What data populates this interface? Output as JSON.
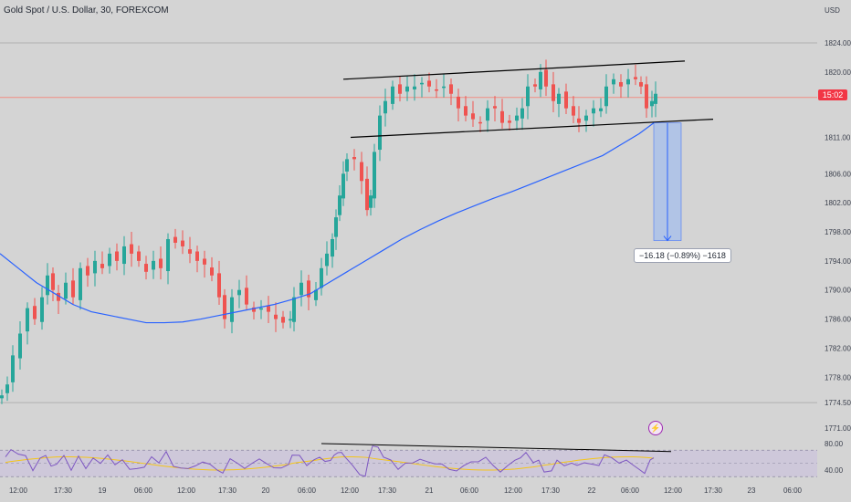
{
  "title": "Gold Spot / U.S. Dollar, 30, FOREXCOM",
  "currency": "USD",
  "last_price_label": "15:02",
  "measure_label": "−16.18 (−0.89%) −1618",
  "colors": {
    "background": "#d4d4d4",
    "up": "#26a69a",
    "down": "#ef5350",
    "moving_average": "#2962ff",
    "rsi": "#7e57c2",
    "rsi_signal": "#f5c518",
    "measure_fill": "#a9c1eb",
    "trendline": "#000000"
  },
  "chart_data": [
    {
      "type": "candlestick",
      "series_name": "Gold Spot / U.S. Dollar",
      "y_ticks": [
        1824.0,
        1820.0,
        1811.0,
        1806.0,
        1802.0,
        1798.0,
        1794.0,
        1790.0,
        1786.0,
        1782.0,
        1778.0,
        1774.5,
        1771.0
      ],
      "x_ticks": [
        "12:00",
        "17:30",
        "19",
        "06:00",
        "12:00",
        "17:30",
        "20",
        "06:00",
        "12:00",
        "17:30",
        "21",
        "06:00",
        "12:00",
        "17:30",
        "22",
        "06:00",
        "12:00",
        "17:30",
        "23",
        "06:00"
      ],
      "close_path": [
        [
          0,
          1775.5
        ],
        [
          6,
          1777
        ],
        [
          12,
          1781
        ],
        [
          20,
          1784
        ],
        [
          28,
          1787.5
        ],
        [
          36,
          1786
        ],
        [
          44,
          1789
        ],
        [
          50,
          1792
        ],
        [
          56,
          1790
        ],
        [
          62,
          1788.5
        ],
        [
          70,
          1791
        ],
        [
          78,
          1789
        ],
        [
          86,
          1793
        ],
        [
          94,
          1792
        ],
        [
          102,
          1794
        ],
        [
          110,
          1793
        ],
        [
          118,
          1795
        ],
        [
          126,
          1794
        ],
        [
          134,
          1796
        ],
        [
          142,
          1795
        ],
        [
          150,
          1794
        ],
        [
          158,
          1792.5
        ],
        [
          166,
          1794
        ],
        [
          174,
          1793
        ],
        [
          182,
          1797
        ],
        [
          190,
          1796.5
        ],
        [
          198,
          1796
        ],
        [
          206,
          1795
        ],
        [
          214,
          1794
        ],
        [
          222,
          1793.5
        ],
        [
          230,
          1792
        ],
        [
          238,
          1789
        ],
        [
          244,
          1786
        ],
        [
          252,
          1789
        ],
        [
          260,
          1790
        ],
        [
          268,
          1788
        ],
        [
          276,
          1787
        ],
        [
          284,
          1787.5
        ],
        [
          292,
          1787
        ],
        [
          300,
          1786
        ],
        [
          308,
          1785.5
        ],
        [
          316,
          1786
        ],
        [
          320,
          1789
        ],
        [
          328,
          1791
        ],
        [
          336,
          1789
        ],
        [
          344,
          1790
        ],
        [
          350,
          1793
        ],
        [
          356,
          1795
        ],
        [
          362,
          1797
        ],
        [
          366,
          1800
        ],
        [
          370,
          1803
        ],
        [
          374,
          1806
        ],
        [
          378,
          1808
        ],
        [
          386,
          1808
        ],
        [
          394,
          1805
        ],
        [
          400,
          1801
        ],
        [
          404,
          1803
        ],
        [
          408,
          1809
        ],
        [
          414,
          1814
        ],
        [
          420,
          1816
        ],
        [
          428,
          1818
        ],
        [
          436,
          1817
        ],
        [
          444,
          1818
        ],
        [
          452,
          1818
        ],
        [
          460,
          1818.5
        ],
        [
          468,
          1818
        ],
        [
          476,
          1817.5
        ],
        [
          484,
          1818
        ],
        [
          492,
          1817
        ],
        [
          500,
          1815
        ],
        [
          508,
          1814
        ],
        [
          516,
          1813.5
        ],
        [
          524,
          1813
        ],
        [
          532,
          1815
        ],
        [
          540,
          1815
        ],
        [
          548,
          1813
        ],
        [
          556,
          1813
        ],
        [
          564,
          1814
        ],
        [
          570,
          1815
        ],
        [
          576,
          1818
        ],
        [
          584,
          1818
        ],
        [
          590,
          1820
        ],
        [
          596,
          1818
        ],
        [
          604,
          1816
        ],
        [
          610,
          1817
        ],
        [
          618,
          1815
        ],
        [
          626,
          1814
        ],
        [
          632,
          1813
        ],
        [
          640,
          1814
        ],
        [
          648,
          1815
        ],
        [
          656,
          1815
        ],
        [
          662,
          1818
        ],
        [
          670,
          1819
        ],
        [
          678,
          1818
        ],
        [
          686,
          1819
        ],
        [
          694,
          1819
        ],
        [
          700,
          1818
        ],
        [
          706,
          1815
        ],
        [
          712,
          1816
        ],
        [
          716,
          1817
        ]
      ],
      "moving_average": [
        [
          0,
          1795
        ],
        [
          20,
          1793
        ],
        [
          40,
          1791
        ],
        [
          60,
          1789.5
        ],
        [
          80,
          1788
        ],
        [
          100,
          1787
        ],
        [
          120,
          1786.5
        ],
        [
          140,
          1786
        ],
        [
          160,
          1785.5
        ],
        [
          180,
          1785.5
        ],
        [
          200,
          1785.6
        ],
        [
          220,
          1786
        ],
        [
          240,
          1786.5
        ],
        [
          260,
          1787
        ],
        [
          280,
          1787.5
        ],
        [
          300,
          1788
        ],
        [
          320,
          1788.7
        ],
        [
          340,
          1789.5
        ],
        [
          360,
          1791
        ],
        [
          380,
          1792.5
        ],
        [
          400,
          1794
        ],
        [
          420,
          1795.5
        ],
        [
          440,
          1797
        ],
        [
          460,
          1798.3
        ],
        [
          480,
          1799.5
        ],
        [
          500,
          1800.6
        ],
        [
          520,
          1801.6
        ],
        [
          540,
          1802.6
        ],
        [
          560,
          1803.5
        ],
        [
          580,
          1804.5
        ],
        [
          600,
          1805.5
        ],
        [
          620,
          1806.5
        ],
        [
          640,
          1807.5
        ],
        [
          660,
          1808.5
        ],
        [
          680,
          1810
        ],
        [
          700,
          1811.5
        ],
        [
          716,
          1813
        ]
      ],
      "channel_upper": [
        [
          376,
          1819
        ],
        [
          750,
          1821.5
        ]
      ],
      "channel_lower": [
        [
          384,
          1811
        ],
        [
          781,
          1813.5
        ]
      ],
      "measure": {
        "from": 1813.0,
        "to": 1796.8,
        "change": -16.18,
        "change_pct": -0.89,
        "ticks": -1618
      },
      "last_price_line": 1816.5,
      "horizontal_lines": [
        1824.0,
        1774.5
      ]
    },
    {
      "type": "line",
      "series_name": "RSI",
      "y_ticks": [
        80.0,
        40.0
      ],
      "band_upper": 70,
      "band_lower": 30,
      "rsi_trendline": [
        [
          352,
          80
        ],
        [
          735,
          68
        ]
      ]
    }
  ]
}
